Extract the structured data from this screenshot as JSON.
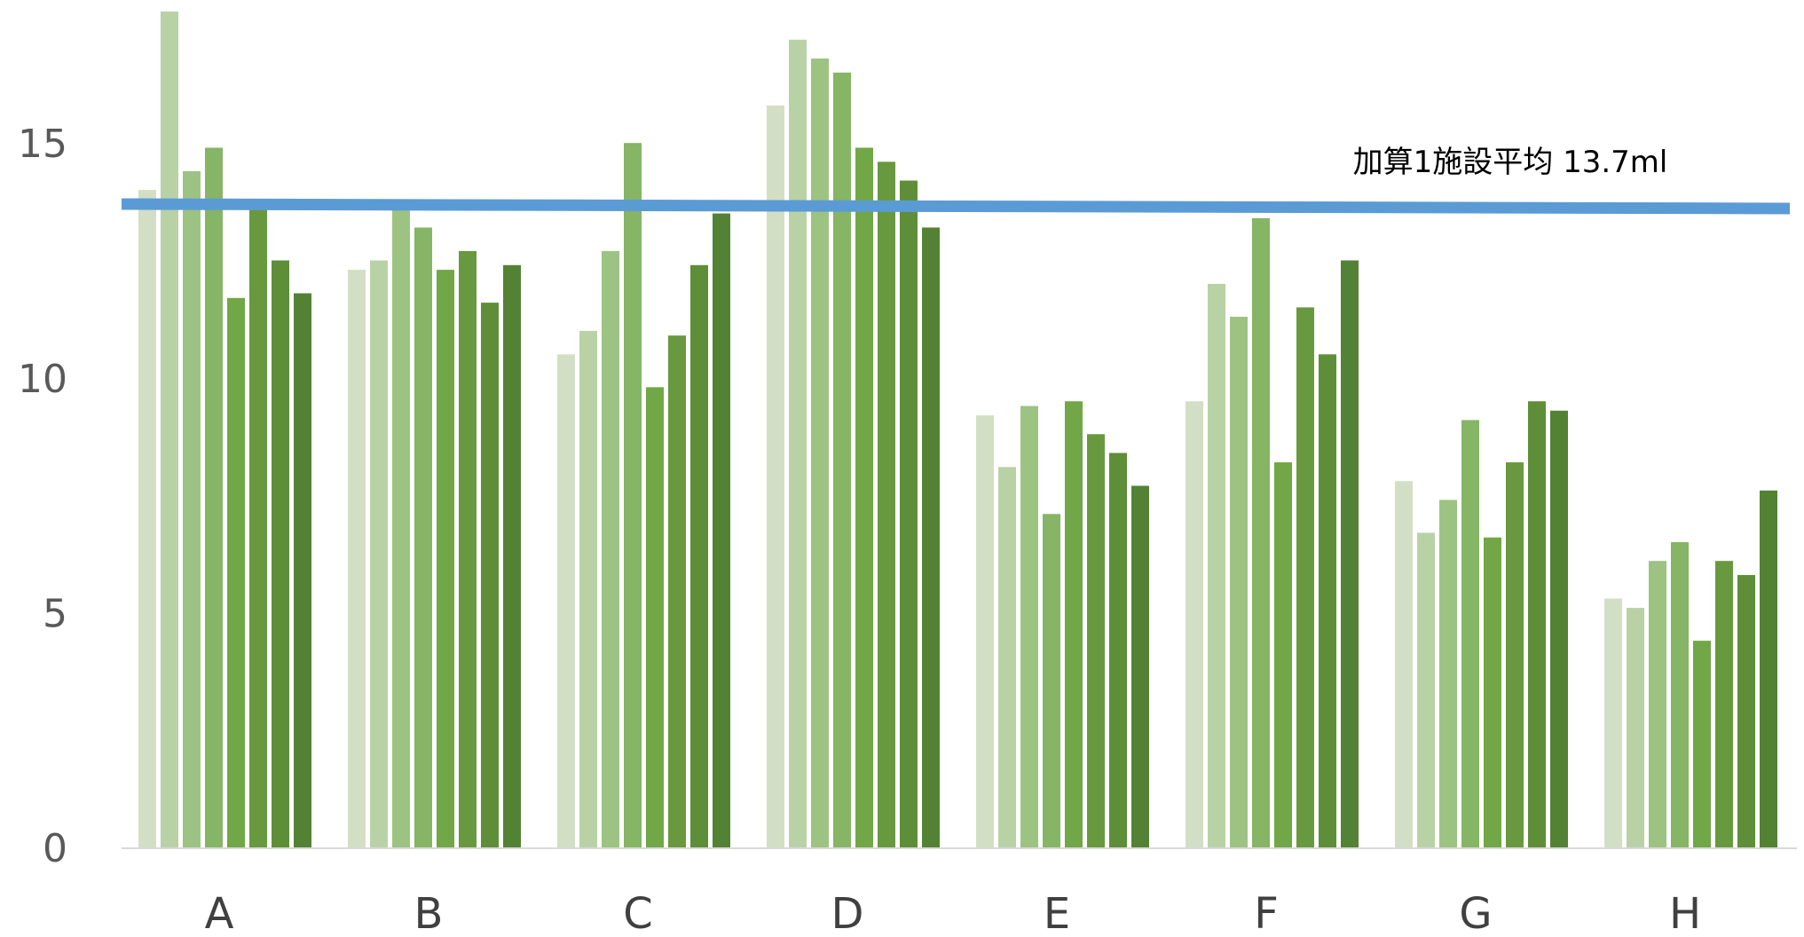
{
  "chart_data": {
    "type": "bar",
    "categories": [
      "A",
      "B",
      "C",
      "D",
      "E",
      "F",
      "G",
      "H"
    ],
    "series": [
      {
        "values": [
          14.0,
          12.3,
          10.5,
          15.8,
          9.2,
          9.5,
          7.8,
          5.3
        ],
        "color": "#d2dfc4"
      },
      {
        "values": [
          17.8,
          12.5,
          11.0,
          17.2,
          8.1,
          12.0,
          6.7,
          5.1
        ],
        "color": "#b8d2a6"
      },
      {
        "values": [
          14.4,
          13.8,
          12.7,
          16.8,
          9.4,
          11.3,
          7.4,
          6.1
        ],
        "color": "#9dc382"
      },
      {
        "values": [
          14.9,
          13.2,
          15.0,
          16.5,
          7.1,
          13.4,
          9.1,
          6.5
        ],
        "color": "#85b565"
      },
      {
        "values": [
          11.7,
          12.3,
          9.8,
          14.9,
          9.5,
          8.2,
          6.6,
          4.4
        ],
        "color": "#71a746"
      },
      {
        "values": [
          13.8,
          12.7,
          10.9,
          14.6,
          8.8,
          11.5,
          8.2,
          6.1
        ],
        "color": "#68993f"
      },
      {
        "values": [
          12.5,
          11.6,
          12.4,
          14.2,
          8.4,
          10.5,
          9.5,
          5.8
        ],
        "color": "#5f8e39"
      },
      {
        "values": [
          11.8,
          12.4,
          13.5,
          13.2,
          7.7,
          12.5,
          9.3,
          7.6
        ],
        "color": "#548235"
      }
    ],
    "reference_line": {
      "label": "加算1施設平均 13.7ml",
      "value": 13.7,
      "color": "#5b9bd5"
    },
    "ylim": [
      0,
      17.8
    ],
    "yticks": [
      0,
      5,
      10,
      15
    ],
    "title": "",
    "xlabel": "",
    "ylabel": "",
    "grid": false,
    "legend": "none"
  }
}
